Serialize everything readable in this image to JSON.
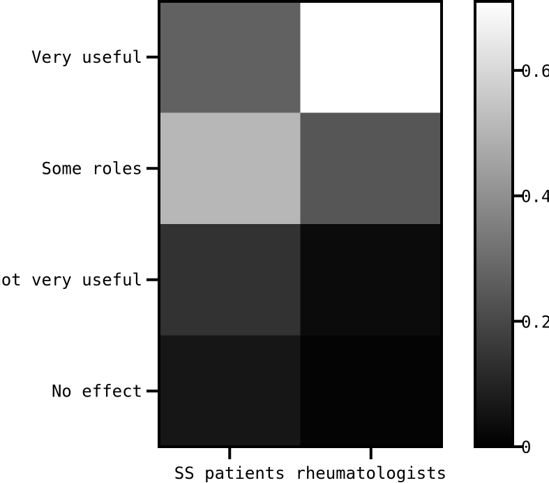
{
  "chart_data": {
    "type": "heatmap",
    "title": "",
    "xlabel": "",
    "ylabel": "",
    "x_categories": [
      "SS patients",
      "rheumatologists"
    ],
    "y_categories": [
      "Very useful",
      "Some roles",
      "Not very useful",
      "No effect"
    ],
    "values": [
      [
        0.27,
        0.71
      ],
      [
        0.51,
        0.24
      ],
      [
        0.14,
        0.03
      ],
      [
        0.06,
        0.01
      ]
    ],
    "colorbar": {
      "range": [
        0,
        0.71
      ],
      "ticks": [
        0,
        0.2,
        0.4,
        0.6
      ],
      "tick_labels": [
        "0",
        "0.2",
        "0.4",
        "0.6"
      ],
      "colormap": [
        "#000000",
        "#ffffff"
      ]
    }
  }
}
